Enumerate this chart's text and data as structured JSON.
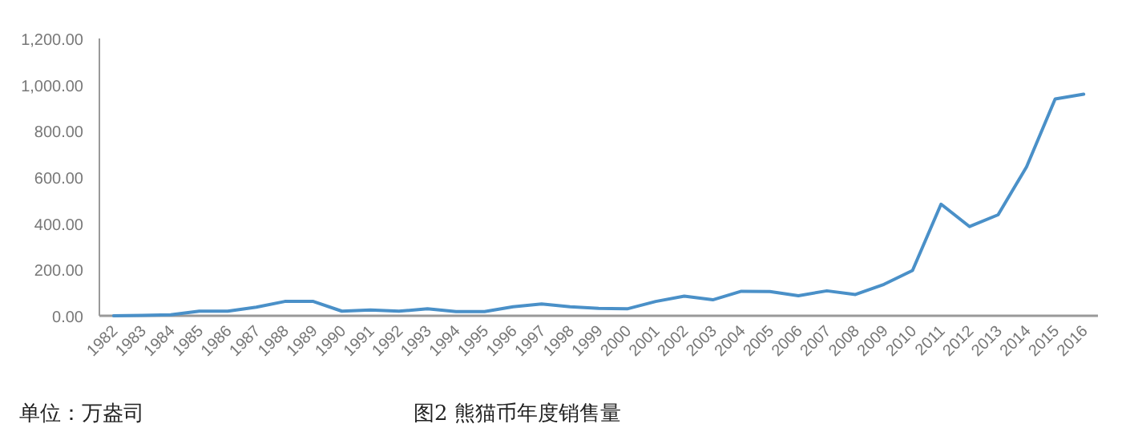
{
  "chart_data": {
    "type": "line",
    "categories": [
      "1982",
      "1983",
      "1984",
      "1985",
      "1986",
      "1987",
      "1988",
      "1989",
      "1990",
      "1991",
      "1992",
      "1993",
      "1994",
      "1995",
      "1996",
      "1997",
      "1998",
      "1999",
      "2000",
      "2001",
      "2002",
      "2003",
      "2004",
      "2005",
      "2006",
      "2007",
      "2008",
      "2009",
      "2010",
      "2011",
      "2012",
      "2013",
      "2014",
      "2015",
      "2016"
    ],
    "series": [
      {
        "color": "#4a90c8",
        "values": [
          0,
          2,
          4,
          20,
          20,
          37,
          62,
          62,
          20,
          25,
          20,
          30,
          18,
          18,
          39,
          51,
          39,
          32,
          30,
          62,
          85,
          69,
          106,
          105,
          87,
          108,
          92,
          136,
          196,
          483,
          386,
          437,
          645,
          938,
          959
        ]
      }
    ],
    "ylim": [
      0,
      1200
    ],
    "yticks": [
      {
        "value": 0,
        "label": "0.00"
      },
      {
        "value": 200,
        "label": "200.00"
      },
      {
        "value": 400,
        "label": "400.00"
      },
      {
        "value": 600,
        "label": "600.00"
      },
      {
        "value": 800,
        "label": "800.00"
      },
      {
        "value": 1000,
        "label": "1,000.00"
      },
      {
        "value": 1200,
        "label": "1,200.00"
      }
    ],
    "annotations": [
      "单位：万盎司",
      "图2 熊猫币年度销售量"
    ],
    "grid": false,
    "marker": "none",
    "line_style": "solid"
  }
}
